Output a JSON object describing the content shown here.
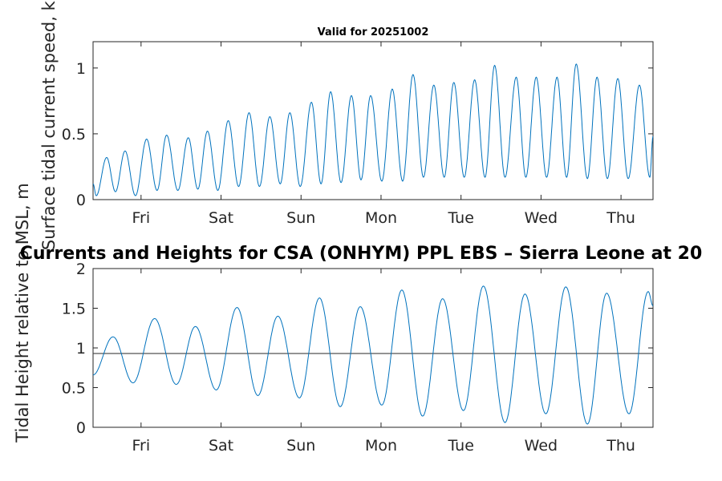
{
  "figure": {
    "suptitle": "Currents and Heights for CSA (ONHYM) PPL EBS  – Sierra Leone at 20"
  },
  "colors": {
    "series": "#0072bd",
    "refline": "#404040",
    "axes": "#262626",
    "background": "#ffffff"
  },
  "chart_data": [
    {
      "type": "line",
      "title": "Valid for 20251002",
      "xlabel": "",
      "ylabel": "Surface tidal current speed, kn",
      "xlim": [
        0,
        7.0
      ],
      "ylim": [
        0,
        1.2
      ],
      "yticks": [
        0,
        0.5,
        1
      ],
      "ytick_labels": [
        "0",
        "0.5",
        "1"
      ],
      "xticks": [
        0.6,
        1.6,
        2.6,
        3.6,
        4.6,
        5.6,
        6.6
      ],
      "xtick_labels": [
        "Fri",
        "Sat",
        "Sun",
        "Mon",
        "Tue",
        "Wed",
        "Thu"
      ],
      "series": [
        {
          "name": "current speed",
          "peaks": [
            [
              0.17,
              0.32
            ],
            [
              0.4,
              0.37
            ],
            [
              0.67,
              0.46
            ],
            [
              0.92,
              0.49
            ],
            [
              1.19,
              0.47
            ],
            [
              1.43,
              0.52
            ],
            [
              1.69,
              0.6
            ],
            [
              1.95,
              0.66
            ],
            [
              2.21,
              0.63
            ],
            [
              2.46,
              0.66
            ],
            [
              2.73,
              0.74
            ],
            [
              2.97,
              0.82
            ],
            [
              3.23,
              0.79
            ],
            [
              3.47,
              0.79
            ],
            [
              3.74,
              0.84
            ],
            [
              4.0,
              0.95
            ],
            [
              4.26,
              0.87
            ],
            [
              4.51,
              0.89
            ],
            [
              4.77,
              0.91
            ],
            [
              5.02,
              1.02
            ],
            [
              5.29,
              0.93
            ],
            [
              5.54,
              0.93
            ],
            [
              5.8,
              0.93
            ],
            [
              6.04,
              1.03
            ],
            [
              6.3,
              0.93
            ],
            [
              6.56,
              0.92
            ],
            [
              6.83,
              0.87
            ]
          ],
          "troughs": [
            [
              0.04,
              0.03
            ],
            [
              0.28,
              0.06
            ],
            [
              0.53,
              0.03
            ],
            [
              0.8,
              0.07
            ],
            [
              1.06,
              0.07
            ],
            [
              1.31,
              0.08
            ],
            [
              1.56,
              0.07
            ],
            [
              1.82,
              0.1
            ],
            [
              2.08,
              0.1
            ],
            [
              2.34,
              0.12
            ],
            [
              2.59,
              0.1
            ],
            [
              2.85,
              0.12
            ],
            [
              3.1,
              0.13
            ],
            [
              3.35,
              0.15
            ],
            [
              3.61,
              0.14
            ],
            [
              3.87,
              0.14
            ],
            [
              4.13,
              0.17
            ],
            [
              4.39,
              0.17
            ],
            [
              4.64,
              0.17
            ],
            [
              4.9,
              0.17
            ],
            [
              5.15,
              0.17
            ],
            [
              5.41,
              0.17
            ],
            [
              5.67,
              0.17
            ],
            [
              5.92,
              0.17
            ],
            [
              6.18,
              0.16
            ],
            [
              6.43,
              0.16
            ],
            [
              6.69,
              0.16
            ],
            [
              6.96,
              0.17
            ]
          ],
          "start": [
            0.0,
            0.12
          ],
          "end": [
            7.0,
            0.48
          ]
        }
      ]
    },
    {
      "type": "line",
      "title": "",
      "xlabel": "",
      "ylabel": "Tidal Height relative to MSL, m",
      "xlim": [
        0,
        7.0
      ],
      "ylim": [
        0,
        2
      ],
      "yticks": [
        0,
        0.5,
        1,
        1.5,
        2
      ],
      "ytick_labels": [
        "0",
        "0.5",
        "1",
        "1.5",
        "2"
      ],
      "xticks": [
        0.6,
        1.6,
        2.6,
        3.6,
        4.6,
        5.6,
        6.6
      ],
      "xtick_labels": [
        "Fri",
        "Sat",
        "Sun",
        "Mon",
        "Tue",
        "Wed",
        "Thu"
      ],
      "reference_line": 0.93,
      "series": [
        {
          "name": "tidal height",
          "highs": [
            [
              0.25,
              1.14
            ],
            [
              0.77,
              1.37
            ],
            [
              1.28,
              1.27
            ],
            [
              1.8,
              1.51
            ],
            [
              2.31,
              1.4
            ],
            [
              2.83,
              1.63
            ],
            [
              3.34,
              1.52
            ],
            [
              3.86,
              1.73
            ],
            [
              4.37,
              1.62
            ],
            [
              4.88,
              1.78
            ],
            [
              5.4,
              1.68
            ],
            [
              5.91,
              1.77
            ],
            [
              6.42,
              1.69
            ],
            [
              6.94,
              1.71
            ]
          ],
          "lows": [
            [
              0.5,
              0.56
            ],
            [
              1.04,
              0.54
            ],
            [
              1.54,
              0.47
            ],
            [
              2.06,
              0.4
            ],
            [
              2.58,
              0.37
            ],
            [
              3.09,
              0.26
            ],
            [
              3.61,
              0.28
            ],
            [
              4.12,
              0.14
            ],
            [
              4.63,
              0.21
            ],
            [
              5.15,
              0.06
            ],
            [
              5.66,
              0.17
            ],
            [
              6.18,
              0.04
            ],
            [
              6.7,
              0.17
            ]
          ],
          "start": [
            0.0,
            0.66
          ],
          "end": [
            7.0,
            1.53
          ]
        }
      ]
    }
  ]
}
